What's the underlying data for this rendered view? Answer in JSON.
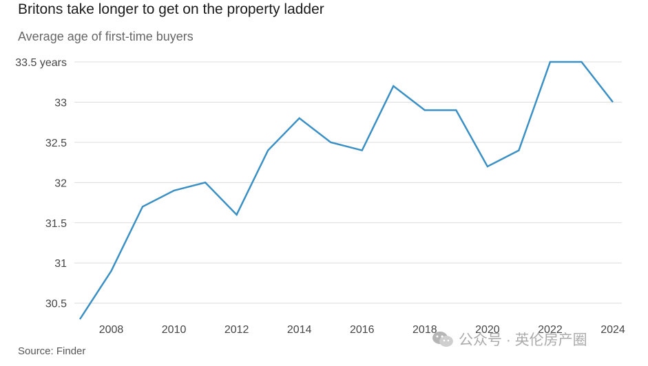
{
  "header": {
    "title": "Britons take longer to get on the property ladder",
    "subtitle": "Average age of first-time buyers"
  },
  "footer": {
    "source": "Source: Finder"
  },
  "watermark": {
    "text": "公众号 · 英伦房产圈",
    "icon": "wechat-icon"
  },
  "chart_data": {
    "type": "line",
    "title": "Britons take longer to get on the property ladder",
    "subtitle": "Average age of first-time buyers",
    "xlabel": "",
    "ylabel": "",
    "x": [
      2007,
      2008,
      2009,
      2010,
      2011,
      2012,
      2013,
      2014,
      2015,
      2016,
      2017,
      2018,
      2019,
      2020,
      2021,
      2022,
      2023,
      2024
    ],
    "series": [
      {
        "values": [
          30.3,
          30.9,
          31.7,
          31.9,
          32.0,
          31.6,
          32.4,
          32.8,
          32.5,
          32.4,
          33.2,
          32.9,
          32.9,
          32.2,
          32.4,
          33.5,
          33.5,
          33.0
        ],
        "color": "#3a8fc4"
      }
    ],
    "xticks": [
      "2008",
      "2010",
      "2012",
      "2014",
      "2016",
      "2018",
      "2020",
      "2022",
      "2024"
    ],
    "yticks": [
      "30.5",
      "31",
      "31.5",
      "32",
      "32.5",
      "33",
      "33.5 years"
    ],
    "ylim": [
      30.3,
      33.5
    ],
    "xlim": [
      2007,
      2024
    ],
    "grid": true,
    "legend": "none"
  }
}
